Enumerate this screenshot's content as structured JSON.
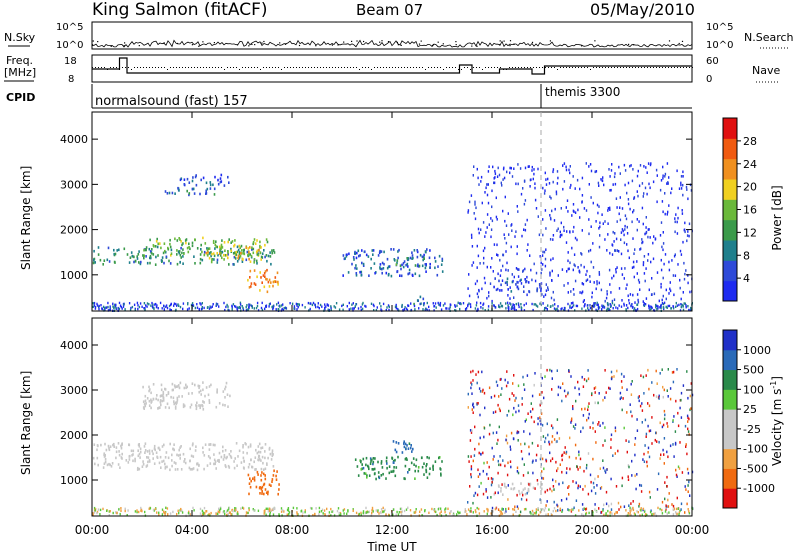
{
  "header": {
    "station": "King Salmon (fitACF)",
    "beam": "Beam 07",
    "date": "05/May/2010"
  },
  "noise_panel": {
    "left_label": "N.Sky",
    "left_ticks": [
      "10^5",
      "10^0"
    ],
    "right_ticks": [
      "10^5",
      "10^0"
    ],
    "right_label": "N.Search"
  },
  "freq_panel": {
    "left_label_1": "Freq.",
    "left_label_2": "[MHz]",
    "left_ticks": [
      "18",
      "8"
    ],
    "right_ticks": [
      "60",
      "0"
    ],
    "right_label": "Nave"
  },
  "cpid": {
    "label": "CPID",
    "program_1": "normalsound (fast) 157",
    "program_2": "themis 3300"
  },
  "colors": {
    "power_scale": [
      "#1e2bf0",
      "#2e4ad8",
      "#1f7f8c",
      "#3a9a4a",
      "#6ab83a",
      "#f0d020",
      "#f09020",
      "#f05a10",
      "#e01010"
    ],
    "velocity_scale": [
      "#2030c8",
      "#2a6ab8",
      "#2a8a4a",
      "#5ac83a",
      "#c8c8c8",
      "#c8c8c8",
      "#f0a040",
      "#f06a10",
      "#e01010"
    ]
  },
  "chart_data": [
    {
      "type": "heatmap",
      "title": "Power",
      "ylabel": "Slant Range [km]",
      "yticks": [
        "1000",
        "2000",
        "3000",
        "4000"
      ],
      "ylim": [
        200,
        4600
      ],
      "xlim": [
        "00:00",
        "24:00"
      ],
      "colorbar_label": "Power [dB]",
      "colorbar_ticks": [
        "4",
        "8",
        "12",
        "16",
        "20",
        "24",
        "28"
      ],
      "colorbar_range": [
        0,
        32
      ],
      "regions": [
        {
          "t0": 0.0,
          "t1": 7.3,
          "r0": 1250,
          "r1": 1650,
          "level": 10
        },
        {
          "t0": 2.0,
          "t1": 7.0,
          "r0": 1450,
          "r1": 1850,
          "level": 15
        },
        {
          "t0": 4.5,
          "t1": 6.8,
          "r0": 1300,
          "r1": 1650,
          "level": 19
        },
        {
          "t0": 6.2,
          "t1": 7.5,
          "r0": 650,
          "r1": 1150,
          "level": 24
        },
        {
          "t0": 2.8,
          "t1": 5.0,
          "r0": 2750,
          "r1": 2950,
          "level": 7
        },
        {
          "t0": 3.5,
          "t1": 5.5,
          "r0": 3000,
          "r1": 3250,
          "level": 5
        },
        {
          "t0": 10.0,
          "t1": 14.0,
          "r0": 1000,
          "r1": 1600,
          "level": 6
        },
        {
          "t0": 12.0,
          "t1": 13.3,
          "r0": 1200,
          "r1": 1400,
          "level": 11
        },
        {
          "t0": 12.8,
          "t1": 13.3,
          "r0": 380,
          "r1": 600,
          "level": 10
        },
        {
          "t0": 16.0,
          "t1": 18.0,
          "r0": 650,
          "r1": 950,
          "level": 5
        }
      ]
    },
    {
      "type": "heatmap",
      "title": "Velocity",
      "ylabel": "Slant Range [km]",
      "yticks": [
        "1000",
        "2000",
        "3000",
        "4000"
      ],
      "ylim": [
        200,
        4600
      ],
      "xlim": [
        "00:00",
        "24:00"
      ],
      "xticks": [
        "00:00",
        "04:00",
        "08:00",
        "12:00",
        "16:00",
        "20:00",
        "00:00"
      ],
      "xlabel": "Time UT",
      "colorbar_label": "Velocity [m s^-1]",
      "colorbar_ticks": [
        "1000",
        "500",
        "100",
        "25",
        "-25",
        "-100",
        "-500",
        "-1000"
      ],
      "regions": [
        {
          "t0": 0.0,
          "t1": 7.3,
          "r0": 1250,
          "r1": 1850,
          "velocity": 0
        },
        {
          "t0": 2.0,
          "t1": 5.5,
          "r0": 2600,
          "r1": 3200,
          "velocity": 0
        },
        {
          "t0": 6.2,
          "t1": 7.5,
          "r0": 700,
          "r1": 1250,
          "velocity": -300
        },
        {
          "t0": 10.5,
          "t1": 14.0,
          "r0": 1050,
          "r1": 1550,
          "velocity": 200
        },
        {
          "t0": 12.0,
          "t1": 13.0,
          "r0": 1600,
          "r1": 1900,
          "velocity": 400
        },
        {
          "t0": 16.0,
          "t1": 18.0,
          "r0": 700,
          "r1": 950,
          "velocity": 0
        }
      ]
    }
  ]
}
